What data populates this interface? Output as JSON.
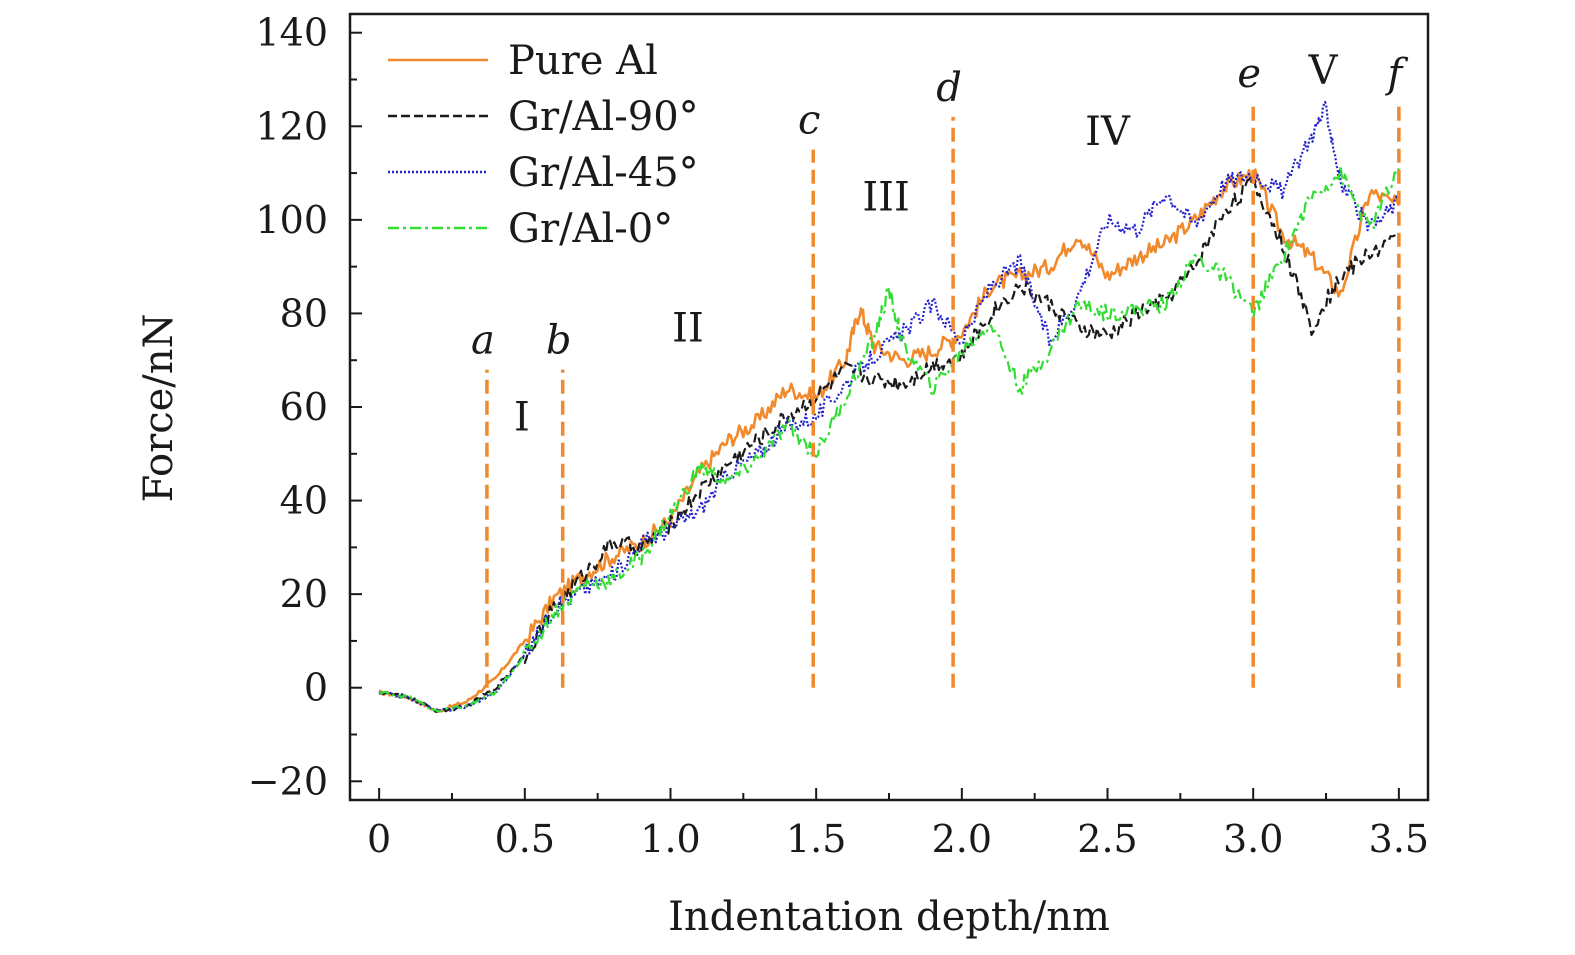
{
  "chart_data": {
    "type": "line",
    "title": "",
    "xlabel": "Indentation depth/nm",
    "ylabel": "Force/nN",
    "xlim": [
      -0.1,
      3.6
    ],
    "ylim": [
      -24,
      144
    ],
    "x_ticks": [
      {
        "value": 0,
        "label": "0"
      },
      {
        "value": 0.5,
        "label": "0.5"
      },
      {
        "value": 1.0,
        "label": "1.0"
      },
      {
        "value": 1.5,
        "label": "1.5"
      },
      {
        "value": 2.0,
        "label": "2.0"
      },
      {
        "value": 2.5,
        "label": "2.5"
      },
      {
        "value": 3.0,
        "label": "3.0"
      },
      {
        "value": 3.5,
        "label": "3.5"
      }
    ],
    "y_ticks": [
      {
        "value": -20,
        "label": "−20"
      },
      {
        "value": 0,
        "label": "0"
      },
      {
        "value": 20,
        "label": "20"
      },
      {
        "value": 40,
        "label": "40"
      },
      {
        "value": 60,
        "label": "60"
      },
      {
        "value": 80,
        "label": "80"
      },
      {
        "value": 100,
        "label": "100"
      },
      {
        "value": 120,
        "label": "120"
      },
      {
        "value": 140,
        "label": "140"
      }
    ],
    "x_minor_step": 0.25,
    "y_minor_step": 10,
    "grid": false,
    "legend_position": "top-left",
    "series": [
      {
        "name": "Pure Al",
        "color": "#f08a2c",
        "dash": "solid",
        "x": [
          0,
          0.1,
          0.2,
          0.3,
          0.4,
          0.5,
          0.6,
          0.7,
          0.8,
          0.9,
          1.0,
          1.1,
          1.2,
          1.3,
          1.4,
          1.5,
          1.6,
          1.65,
          1.7,
          1.8,
          1.9,
          2.0,
          2.1,
          2.2,
          2.3,
          2.4,
          2.5,
          2.6,
          2.7,
          2.8,
          2.9,
          3.0,
          3.1,
          3.2,
          3.3,
          3.4,
          3.5
        ],
        "y": [
          -1,
          -2,
          -5,
          -3,
          2,
          10,
          19,
          24,
          28,
          31,
          36,
          46,
          53,
          57,
          64,
          62,
          70,
          81,
          73,
          70,
          72,
          76,
          86,
          88,
          90,
          97,
          88,
          92,
          95,
          100,
          107,
          110,
          97,
          92,
          84,
          106,
          103
        ]
      },
      {
        "name": "Gr/Al-90°",
        "color": "#1a1a1a",
        "dash": "dashed",
        "x": [
          0,
          0.1,
          0.2,
          0.3,
          0.4,
          0.5,
          0.6,
          0.7,
          0.8,
          0.9,
          1.0,
          1.1,
          1.2,
          1.3,
          1.4,
          1.5,
          1.6,
          1.7,
          1.8,
          1.9,
          2.0,
          2.1,
          2.2,
          2.3,
          2.4,
          2.5,
          2.6,
          2.7,
          2.8,
          2.9,
          3.0,
          3.1,
          3.2,
          3.3,
          3.4,
          3.5
        ],
        "y": [
          -1,
          -2,
          -5,
          -4,
          0,
          7,
          17,
          24,
          31,
          30,
          35,
          42,
          48,
          53,
          58,
          62,
          68,
          66,
          65,
          69,
          71,
          80,
          86,
          82,
          77,
          75,
          80,
          83,
          90,
          102,
          108,
          95,
          77,
          88,
          93,
          96
        ]
      },
      {
        "name": "Gr/Al-45°",
        "color": "#2222cc",
        "dash": "dotted",
        "x": [
          0,
          0.1,
          0.2,
          0.3,
          0.4,
          0.5,
          0.6,
          0.7,
          0.8,
          0.9,
          1.0,
          1.1,
          1.2,
          1.3,
          1.4,
          1.5,
          1.6,
          1.7,
          1.8,
          1.9,
          2.0,
          2.1,
          2.2,
          2.3,
          2.4,
          2.5,
          2.6,
          2.7,
          2.8,
          2.9,
          3.0,
          3.1,
          3.2,
          3.25,
          3.3,
          3.4,
          3.5
        ],
        "y": [
          -1,
          -2,
          -5,
          -4,
          -1,
          7,
          17,
          21,
          24,
          31,
          34,
          38,
          46,
          50,
          56,
          58,
          65,
          71,
          76,
          82,
          74,
          86,
          91,
          74,
          84,
          100,
          98,
          106,
          99,
          108,
          110,
          106,
          118,
          124,
          108,
          98,
          104
        ]
      },
      {
        "name": "Gr/Al-0°",
        "color": "#33dd33",
        "dash": "dashdot",
        "x": [
          0,
          0.1,
          0.2,
          0.3,
          0.4,
          0.5,
          0.6,
          0.7,
          0.8,
          0.9,
          1.0,
          1.1,
          1.2,
          1.3,
          1.4,
          1.5,
          1.6,
          1.7,
          1.75,
          1.8,
          1.9,
          2.0,
          2.1,
          2.2,
          2.3,
          2.4,
          2.5,
          2.6,
          2.7,
          2.8,
          2.9,
          3.0,
          3.1,
          3.2,
          3.3,
          3.4,
          3.5
        ],
        "y": [
          -1,
          -2,
          -5,
          -4,
          -1,
          7,
          16,
          22,
          23,
          28,
          37,
          47,
          44,
          49,
          56,
          50,
          62,
          75,
          85,
          73,
          64,
          72,
          78,
          64,
          72,
          82,
          80,
          81,
          82,
          92,
          88,
          80,
          92,
          105,
          110,
          98,
          111
        ]
      }
    ],
    "markers": [
      {
        "label": "a",
        "x": 0.37,
        "y_top": 68
      },
      {
        "label": "b",
        "x": 0.63,
        "y_top": 68
      },
      {
        "label": "c",
        "x": 1.49,
        "y_top": 115
      },
      {
        "label": "d",
        "x": 1.97,
        "y_top": 122
      },
      {
        "label": "e",
        "x": 3.0,
        "y_top": 125
      },
      {
        "label": "f",
        "x": 3.5,
        "y_top": 125
      }
    ],
    "marker_color": "#f08a2c",
    "regions": [
      {
        "label": "I",
        "x": 0.49,
        "y": 58
      },
      {
        "label": "II",
        "x": 1.06,
        "y": 77
      },
      {
        "label": "III",
        "x": 1.74,
        "y": 105
      },
      {
        "label": "IV",
        "x": 2.5,
        "y": 119
      },
      {
        "label": "V",
        "x": 3.24,
        "y": 132
      }
    ]
  }
}
